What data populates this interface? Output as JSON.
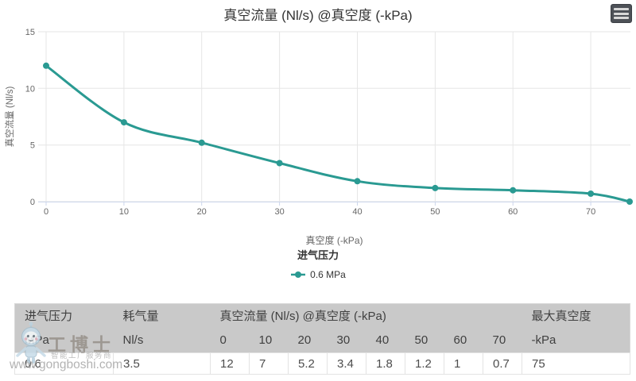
{
  "chart": {
    "title": "真空流量 (Nl/s) @真空度 (-kPa)"
  },
  "chart_data": {
    "type": "line",
    "title": "真空流量 (Nl/s) @真空度 (-kPa)",
    "xlabel": "真空度 (-kPa)",
    "ylabel": "真空流量 (Nl/s)",
    "x": [
      0,
      10,
      20,
      30,
      40,
      50,
      60,
      70,
      75
    ],
    "series": [
      {
        "name": "0.6 MPa",
        "values": [
          12,
          7,
          5.2,
          3.4,
          1.8,
          1.2,
          1,
          0.7,
          0
        ]
      }
    ],
    "xticks": [
      0,
      10,
      20,
      30,
      40,
      50,
      60,
      70
    ],
    "yticks": [
      0,
      5,
      10,
      15
    ],
    "xlim": [
      -1,
      76
    ],
    "ylim": [
      0,
      15
    ],
    "grid": true,
    "legend_title": "进气压力",
    "legend_position": "bottom-center",
    "colors": {
      "line": "#2a9a92",
      "grid": "#e6e6e6",
      "axis": "#ccd6eb",
      "tick_label": "#666666",
      "title": "#333333"
    }
  },
  "legend": {
    "title": "进气压力",
    "items": [
      {
        "label": "0.6 MPa",
        "color": "#2a9a92"
      }
    ]
  },
  "table": {
    "header_bg": "#c9c9c9",
    "header_row1": {
      "inlet_pressure": "进气压力",
      "air_consumption": "耗气量",
      "vacuum_flow": "真空流量 (Nl/s) @真空度 (-kPa)",
      "max_vacuum": "最大真空度"
    },
    "header_row2": [
      "MPa",
      "Nl/s",
      "0",
      "10",
      "20",
      "30",
      "40",
      "50",
      "60",
      "70",
      "-kPa"
    ],
    "data_row": [
      "0.6",
      "3.5",
      "12",
      "7",
      "5.2",
      "3.4",
      "1.8",
      "1.2",
      "1",
      "0.7",
      "75"
    ]
  },
  "watermark": {
    "brand": "工博士",
    "tagline": "智能工厂服务商",
    "url": "www.gongboshi.com"
  }
}
